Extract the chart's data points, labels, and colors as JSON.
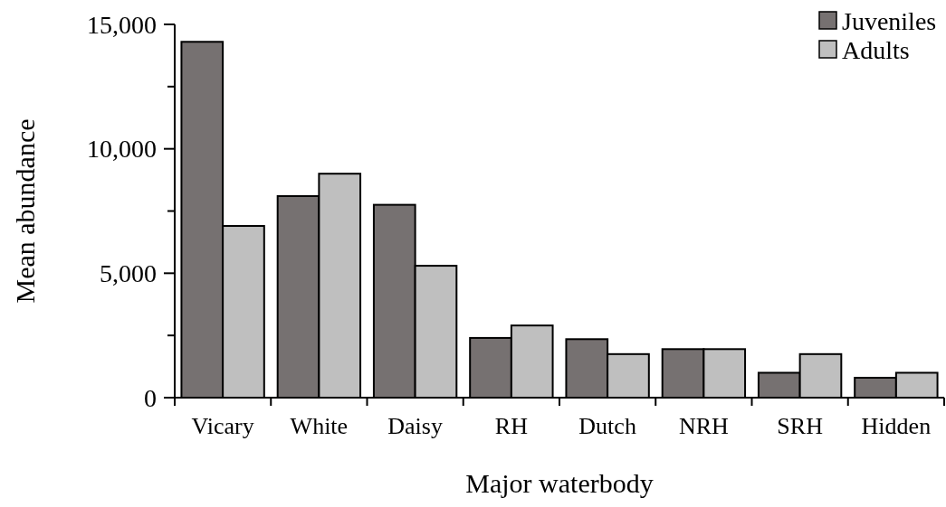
{
  "chart_data": {
    "type": "bar",
    "xlabel": "Major waterbody",
    "ylabel": "Mean abundance",
    "categories": [
      "Vicary",
      "White",
      "Daisy",
      "RH",
      "Dutch",
      "NRH",
      "SRH",
      "Hidden"
    ],
    "series": [
      {
        "name": "Juveniles",
        "color": "#767171",
        "values": [
          14300,
          8100,
          7750,
          2400,
          2350,
          1950,
          1000,
          800
        ]
      },
      {
        "name": "Adults",
        "color": "#bfbfbf",
        "values": [
          6900,
          9000,
          5300,
          2900,
          1750,
          1950,
          1750,
          1000
        ]
      }
    ],
    "ylim": [
      0,
      15000
    ],
    "yticks": [
      {
        "value": 0,
        "label": "0"
      },
      {
        "value": 2500,
        "label": null
      },
      {
        "value": 5000,
        "label": "5,000"
      },
      {
        "value": 7500,
        "label": null
      },
      {
        "value": 10000,
        "label": "10,000"
      },
      {
        "value": 12500,
        "label": null
      },
      {
        "value": 15000,
        "label": "15,000"
      }
    ],
    "legend": "top right"
  }
}
